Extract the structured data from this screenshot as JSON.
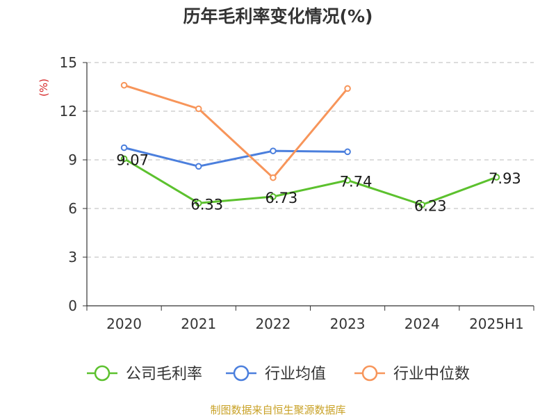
{
  "chart_data": {
    "type": "line",
    "title": "历年毛利率变化情况(%)",
    "ylabel": "(%)",
    "categories": [
      "2020",
      "2021",
      "2022",
      "2023",
      "2024",
      "2025H1"
    ],
    "ylim": [
      0,
      15
    ],
    "yticks": [
      "0",
      "3",
      "6",
      "9",
      "12",
      "15"
    ],
    "grid": true,
    "legend_position": "bottom",
    "series": [
      {
        "name": "公司毛利率",
        "color": "#5cc12e",
        "values": [
          9.07,
          6.33,
          6.73,
          7.74,
          6.23,
          7.93
        ],
        "labels": [
          "9.07",
          "6.33",
          "6.73",
          "7.74",
          "6.23",
          "7.93"
        ]
      },
      {
        "name": "行业均值",
        "color": "#4b7fdd",
        "values": [
          9.75,
          8.6,
          9.55,
          9.5,
          null,
          null
        ]
      },
      {
        "name": "行业中位数",
        "color": "#f7955a",
        "values": [
          13.6,
          12.15,
          7.9,
          13.4,
          null,
          null
        ]
      }
    ]
  },
  "footer": {
    "source": "制图数据来自恒生聚源数据库"
  }
}
